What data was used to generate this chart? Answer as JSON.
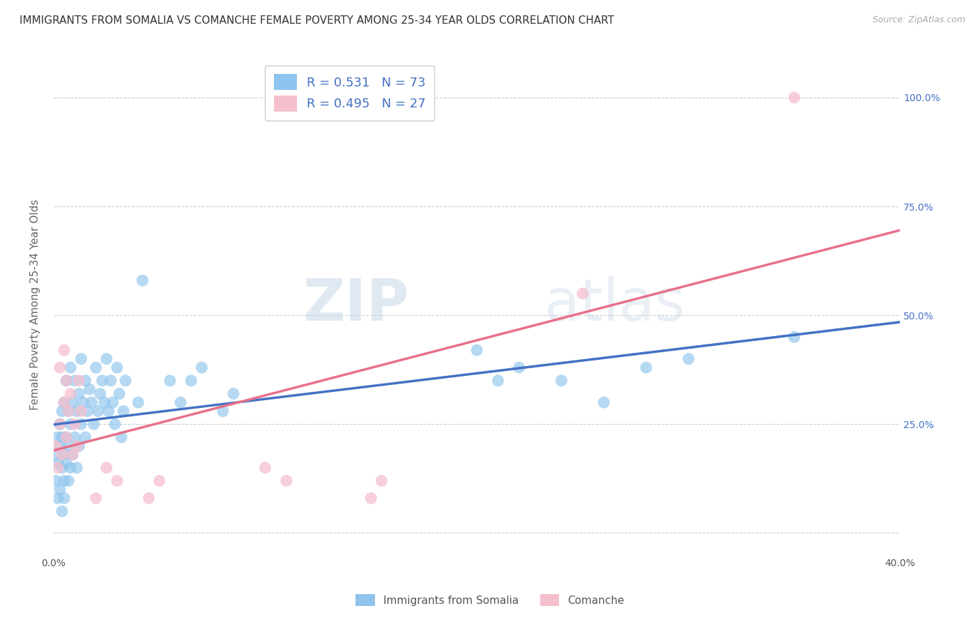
{
  "title": "IMMIGRANTS FROM SOMALIA VS COMANCHE FEMALE POVERTY AMONG 25-34 YEAR OLDS CORRELATION CHART",
  "source": "Source: ZipAtlas.com",
  "ylabel": "Female Poverty Among 25-34 Year Olds",
  "xlim": [
    0.0,
    0.4
  ],
  "ylim": [
    -0.05,
    1.1
  ],
  "xticks": [
    0.0,
    0.1,
    0.2,
    0.3,
    0.4
  ],
  "xticklabels": [
    "0.0%",
    "",
    "",
    "",
    "40.0%"
  ],
  "yticks": [
    0.0,
    0.25,
    0.5,
    0.75,
    1.0
  ],
  "yticklabels_right": [
    "",
    "25.0%",
    "50.0%",
    "75.0%",
    "100.0%"
  ],
  "background_color": "#ffffff",
  "grid_color": "#cccccc",
  "somalia_color": "#8ec4ed",
  "comanche_color": "#f5bfce",
  "somalia_line_color": "#4472c4",
  "comanche_line_color": "#e8708a",
  "R_somalia": 0.531,
  "N_somalia": 73,
  "R_comanche": 0.495,
  "N_comanche": 27,
  "legend_label_somalia": "Immigrants from Somalia",
  "legend_label_comanche": "Comanche",
  "watermark_zip": "ZIP",
  "watermark_atlas": "atlas",
  "title_fontsize": 11,
  "axis_label_fontsize": 11,
  "tick_fontsize": 10,
  "legend_fontsize": 13,
  "somalia_scatter": [
    [
      0.001,
      0.18
    ],
    [
      0.001,
      0.12
    ],
    [
      0.002,
      0.22
    ],
    [
      0.002,
      0.08
    ],
    [
      0.002,
      0.16
    ],
    [
      0.003,
      0.25
    ],
    [
      0.003,
      0.1
    ],
    [
      0.003,
      0.2
    ],
    [
      0.004,
      0.15
    ],
    [
      0.004,
      0.28
    ],
    [
      0.004,
      0.05
    ],
    [
      0.004,
      0.22
    ],
    [
      0.005,
      0.18
    ],
    [
      0.005,
      0.12
    ],
    [
      0.005,
      0.3
    ],
    [
      0.005,
      0.08
    ],
    [
      0.006,
      0.22
    ],
    [
      0.006,
      0.16
    ],
    [
      0.006,
      0.35
    ],
    [
      0.007,
      0.2
    ],
    [
      0.007,
      0.12
    ],
    [
      0.007,
      0.28
    ],
    [
      0.008,
      0.25
    ],
    [
      0.008,
      0.15
    ],
    [
      0.008,
      0.38
    ],
    [
      0.009,
      0.18
    ],
    [
      0.009,
      0.3
    ],
    [
      0.01,
      0.22
    ],
    [
      0.01,
      0.35
    ],
    [
      0.011,
      0.28
    ],
    [
      0.011,
      0.15
    ],
    [
      0.012,
      0.32
    ],
    [
      0.012,
      0.2
    ],
    [
      0.013,
      0.25
    ],
    [
      0.013,
      0.4
    ],
    [
      0.014,
      0.3
    ],
    [
      0.015,
      0.22
    ],
    [
      0.015,
      0.35
    ],
    [
      0.016,
      0.28
    ],
    [
      0.017,
      0.33
    ],
    [
      0.018,
      0.3
    ],
    [
      0.019,
      0.25
    ],
    [
      0.02,
      0.38
    ],
    [
      0.021,
      0.28
    ],
    [
      0.022,
      0.32
    ],
    [
      0.023,
      0.35
    ],
    [
      0.024,
      0.3
    ],
    [
      0.025,
      0.4
    ],
    [
      0.026,
      0.28
    ],
    [
      0.027,
      0.35
    ],
    [
      0.028,
      0.3
    ],
    [
      0.029,
      0.25
    ],
    [
      0.03,
      0.38
    ],
    [
      0.031,
      0.32
    ],
    [
      0.032,
      0.22
    ],
    [
      0.033,
      0.28
    ],
    [
      0.034,
      0.35
    ],
    [
      0.04,
      0.3
    ],
    [
      0.042,
      0.58
    ],
    [
      0.055,
      0.35
    ],
    [
      0.06,
      0.3
    ],
    [
      0.065,
      0.35
    ],
    [
      0.07,
      0.38
    ],
    [
      0.08,
      0.28
    ],
    [
      0.085,
      0.32
    ],
    [
      0.2,
      0.42
    ],
    [
      0.21,
      0.35
    ],
    [
      0.22,
      0.38
    ],
    [
      0.24,
      0.35
    ],
    [
      0.26,
      0.3
    ],
    [
      0.28,
      0.38
    ],
    [
      0.3,
      0.4
    ],
    [
      0.35,
      0.45
    ]
  ],
  "comanche_scatter": [
    [
      0.001,
      0.2
    ],
    [
      0.002,
      0.15
    ],
    [
      0.003,
      0.25
    ],
    [
      0.003,
      0.38
    ],
    [
      0.004,
      0.18
    ],
    [
      0.005,
      0.42
    ],
    [
      0.005,
      0.3
    ],
    [
      0.006,
      0.22
    ],
    [
      0.006,
      0.35
    ],
    [
      0.007,
      0.28
    ],
    [
      0.008,
      0.32
    ],
    [
      0.009,
      0.18
    ],
    [
      0.01,
      0.25
    ],
    [
      0.011,
      0.2
    ],
    [
      0.012,
      0.35
    ],
    [
      0.013,
      0.28
    ],
    [
      0.02,
      0.08
    ],
    [
      0.025,
      0.15
    ],
    [
      0.03,
      0.12
    ],
    [
      0.045,
      0.08
    ],
    [
      0.05,
      0.12
    ],
    [
      0.1,
      0.15
    ],
    [
      0.11,
      0.12
    ],
    [
      0.15,
      0.08
    ],
    [
      0.155,
      0.12
    ],
    [
      0.25,
      0.55
    ],
    [
      0.35,
      1.0
    ]
  ]
}
